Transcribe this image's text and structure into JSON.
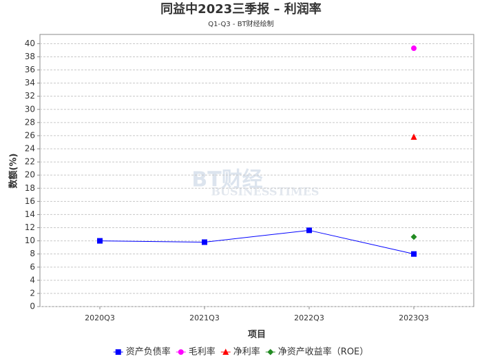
{
  "chart_data": {
    "type": "line",
    "title": "同益中2023三季报 – 利润率",
    "subtitle": "Q1-Q3 - BT财经绘制",
    "watermark": [
      "BT财经",
      "BUSINESSTIMES"
    ],
    "x_label": "项目",
    "y_label": "数额(%)",
    "categories": [
      "2020Q3",
      "2021Q3",
      "2022Q3",
      "2023Q3"
    ],
    "series": [
      {
        "name": "资产负债率",
        "color": "#0000ff",
        "marker": "square",
        "values": [
          10,
          9.8,
          11.6,
          8
        ]
      },
      {
        "name": "毛利率",
        "color": "#ff00ff",
        "marker": "circle",
        "values": [
          null,
          null,
          null,
          39.3
        ]
      },
      {
        "name": "净利率",
        "color": "#ff0000",
        "marker": "triangle",
        "values": [
          null,
          null,
          null,
          25.8
        ]
      },
      {
        "name": "净资产收益率（ROE）",
        "color": "#228b22",
        "marker": "diamond",
        "values": [
          null,
          null,
          null,
          10.6
        ]
      }
    ],
    "ylim": [
      0,
      41.4
    ],
    "yticks": [
      0,
      2,
      4,
      6,
      8,
      10,
      12,
      14,
      16,
      18,
      20,
      22,
      24,
      26,
      28,
      30,
      32,
      34,
      36,
      38,
      40
    ],
    "grid": true
  }
}
